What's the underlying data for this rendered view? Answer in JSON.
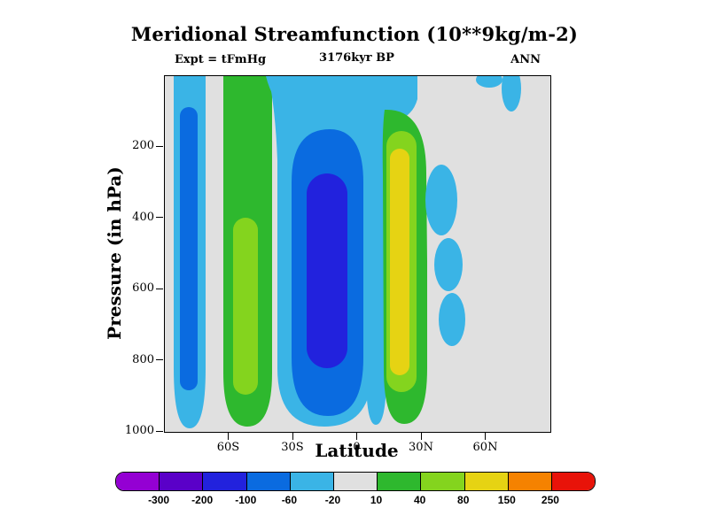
{
  "figure": {
    "title": "Meridional Streamfunction (10**9kg/m-2)",
    "subtitle_left": "Expt = tFmHg",
    "subtitle_center": "3176kyr BP",
    "subtitle_right": "ANN"
  },
  "chart_data": {
    "type": "contour",
    "title": "Meridional Streamfunction (10**9kg/m-2)",
    "units": "10**9 kg/m-2",
    "experiment": "tFmHg",
    "time": "3176kyr BP",
    "season": "ANN",
    "xlabel": "Latitude",
    "ylabel": "Pressure (in hPa)",
    "x_axis": {
      "range": [
        -90,
        90
      ],
      "ticks": [
        {
          "label": "60S",
          "value": -60
        },
        {
          "label": "30S",
          "value": -30
        },
        {
          "label": "0",
          "value": 0
        },
        {
          "label": "30N",
          "value": 30
        },
        {
          "label": "60N",
          "value": 60
        }
      ]
    },
    "y_axis": {
      "range": [
        0,
        1000
      ],
      "inverted_pressure": true,
      "ticks": [
        {
          "label": "200",
          "value": 200
        },
        {
          "label": "400",
          "value": 400
        },
        {
          "label": "600",
          "value": 600
        },
        {
          "label": "800",
          "value": 800
        },
        {
          "label": "1000",
          "value": 1000
        }
      ]
    },
    "colorbar": {
      "boundaries": [
        -300,
        -200,
        -100,
        -60,
        -20,
        10,
        40,
        80,
        150,
        250
      ],
      "boundary_labels": [
        "-300",
        "-200",
        "-100",
        "-60",
        "-20",
        "10",
        "40",
        "80",
        "150",
        "250"
      ],
      "colors": [
        "#9400d3",
        "#5a00c8",
        "#2222dd",
        "#0a6be0",
        "#3ab4e6",
        "#e0e0e0",
        "#2eb82e",
        "#84d41e",
        "#e6d313",
        "#f58200",
        "#e81309"
      ],
      "background_band": "-20 to 10"
    },
    "features": [
      {
        "name": "southern-polar-band",
        "lat": [
          -86,
          -71
        ],
        "pressure": [
          0,
          1000
        ],
        "sign": "negative",
        "peak_band": "-100 to -60"
      },
      {
        "name": "southern-midlat-positive-band",
        "lat": [
          -64,
          -52
        ],
        "pressure": [
          0,
          1000
        ],
        "sign": "positive",
        "peak_band": "40 to 80"
      },
      {
        "name": "southern-hadley-cell",
        "lat": [
          -42,
          -3
        ],
        "pressure": [
          120,
          1000
        ],
        "sign": "negative",
        "peak_band": "-200 to -100"
      },
      {
        "name": "equatorial-cyan-strip",
        "lat": [
          -3,
          3
        ],
        "pressure": [
          0,
          1000
        ],
        "sign": "negative",
        "peak_band": "-60 to -20"
      },
      {
        "name": "northern-hadley-cell",
        "lat": [
          7,
          28
        ],
        "pressure": [
          100,
          1000
        ],
        "sign": "positive",
        "peak_band": "80 to 150"
      },
      {
        "name": "northern-midlat-patches",
        "lat": [
          32,
          46
        ],
        "pressure": [
          250,
          780
        ],
        "sign": "negative",
        "peak_band": "-60 to -20"
      },
      {
        "name": "northern-polar-top-patches",
        "lat": [
          58,
          75
        ],
        "pressure": [
          0,
          110
        ],
        "sign": "negative",
        "peak_band": "-60 to -20"
      }
    ]
  }
}
